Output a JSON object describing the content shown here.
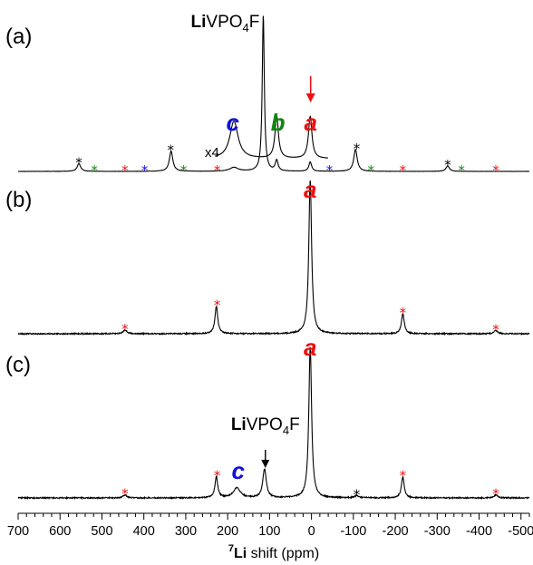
{
  "chart_data": {
    "type": "line",
    "xlabel_sup": "7",
    "xlabel_bold": "Li",
    "xlabel_rest": " shift (ppm)",
    "xlim": [
      700,
      -520
    ],
    "x_reversed": true,
    "x_ticks": [
      "700",
      "600",
      "500",
      "400",
      "300",
      "200",
      "100",
      "0",
      "-100",
      "-200",
      "-300",
      "-400",
      "-500"
    ],
    "x_tick_values": [
      700,
      600,
      500,
      400,
      300,
      200,
      100,
      0,
      -100,
      -200,
      -300,
      -400,
      -500
    ],
    "colors": {
      "a": "#ee1111",
      "b": "#118811",
      "c": "#1111dd",
      "black": "#000000",
      "red_arrow": "#ee1111"
    },
    "panels": [
      {
        "id": "a",
        "label": "(a)",
        "compound": {
          "bold": "Li",
          "plain": "VPO",
          "sub": "4",
          "tail": "F",
          "ppm": 115
        },
        "inset_multiplier": "x4",
        "peaks": [
          {
            "ppm": 115,
            "height": 1.0,
            "width": 3
          },
          {
            "ppm": 83,
            "height": 0.068,
            "width": 4
          },
          {
            "ppm": 3,
            "height": 0.06,
            "width": 4
          },
          {
            "ppm": 185,
            "height": 0.025,
            "width": 12
          },
          {
            "ppm": 335,
            "height": 0.13,
            "width": 5
          },
          {
            "ppm": -105,
            "height": 0.14,
            "width": 5
          },
          {
            "ppm": 555,
            "height": 0.05,
            "width": 5
          },
          {
            "ppm": -325,
            "height": 0.035,
            "width": 5
          }
        ],
        "inset_peaks": [
          {
            "ppm": 185,
            "height": 0.24,
            "width": 12
          },
          {
            "ppm": 83,
            "height": 0.27,
            "width": 5
          },
          {
            "ppm": 3,
            "height": 0.27,
            "width": 5
          }
        ],
        "peak_labels": [
          {
            "text": "c",
            "ppm": 188,
            "series": "c"
          },
          {
            "text": "b",
            "ppm": 80,
            "series": "b"
          },
          {
            "text": "a",
            "ppm": 2,
            "series": "a"
          }
        ],
        "stars": [
          {
            "ppm": 555,
            "color": "black"
          },
          {
            "ppm": 518,
            "color": "b"
          },
          {
            "ppm": 445,
            "color": "a"
          },
          {
            "ppm": 398,
            "color": "c"
          },
          {
            "ppm": 336,
            "color": "black"
          },
          {
            "ppm": 305,
            "color": "b"
          },
          {
            "ppm": 225,
            "color": "a"
          },
          {
            "ppm": -108,
            "color": "black"
          },
          {
            "ppm": -43,
            "color": "c"
          },
          {
            "ppm": -142,
            "color": "b"
          },
          {
            "ppm": -218,
            "color": "a"
          },
          {
            "ppm": -325,
            "color": "black"
          },
          {
            "ppm": -358,
            "color": "b"
          },
          {
            "ppm": -440,
            "color": "a"
          }
        ]
      },
      {
        "id": "b",
        "label": "(b)",
        "peaks": [
          {
            "ppm": 3,
            "height": 1.0,
            "width": 4
          },
          {
            "ppm": 227,
            "height": 0.18,
            "width": 4
          },
          {
            "ppm": -218,
            "height": 0.13,
            "width": 4
          },
          {
            "ppm": 445,
            "height": 0.025,
            "width": 5
          },
          {
            "ppm": -440,
            "height": 0.02,
            "width": 5
          }
        ],
        "peak_labels": [
          {
            "text": "a",
            "ppm": 3,
            "series": "a"
          }
        ],
        "stars": [
          {
            "ppm": 445,
            "color": "a"
          },
          {
            "ppm": 225,
            "color": "a"
          },
          {
            "ppm": -218,
            "color": "a"
          },
          {
            "ppm": -440,
            "color": "a"
          }
        ]
      },
      {
        "id": "c",
        "label": "(c)",
        "compound": {
          "bold": "Li",
          "plain": "VPO",
          "sub": "4",
          "tail": "F",
          "ppm": 110
        },
        "peaks": [
          {
            "ppm": 3,
            "height": 1.0,
            "width": 4
          },
          {
            "ppm": 227,
            "height": 0.14,
            "width": 4
          },
          {
            "ppm": 112,
            "height": 0.19,
            "width": 5
          },
          {
            "ppm": 178,
            "height": 0.065,
            "width": 10
          },
          {
            "ppm": -218,
            "height": 0.14,
            "width": 4
          },
          {
            "ppm": 445,
            "height": 0.02,
            "width": 5
          },
          {
            "ppm": -108,
            "height": 0.015,
            "width": 5
          },
          {
            "ppm": -440,
            "height": 0.02,
            "width": 5
          }
        ],
        "peak_labels": [
          {
            "text": "c",
            "ppm": 175,
            "series": "c"
          },
          {
            "text": "a",
            "ppm": 3,
            "series": "a"
          }
        ],
        "stars": [
          {
            "ppm": 445,
            "color": "a"
          },
          {
            "ppm": 225,
            "color": "a"
          },
          {
            "ppm": -108,
            "color": "black"
          },
          {
            "ppm": -218,
            "color": "a"
          },
          {
            "ppm": -440,
            "color": "a"
          }
        ]
      }
    ]
  }
}
